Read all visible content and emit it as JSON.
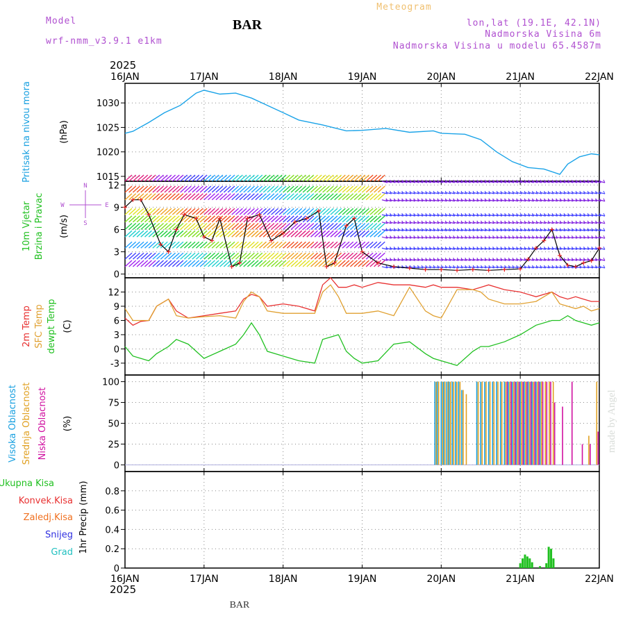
{
  "header": {
    "model_label": "Model",
    "model_name": "wrf-nmm_v3.9.1  e1km",
    "title": "BAR",
    "meteogram_label": "Meteogram",
    "location": "lon,lat (19.1E, 42.1N)",
    "elevation": "Nadmorska Visina 6m",
    "model_elevation": "Nadmorska Visina u modelu 65.4587m",
    "year_top": "2025",
    "year_bottom": "2025",
    "footer_title": "BAR",
    "credit": "made by Angel"
  },
  "colors": {
    "pressure": "#1aa3e8",
    "wind_speed": "#000000",
    "wind_marker": "#e82020",
    "temp_2m": "#e83030",
    "temp_sfc": "#e0a030",
    "dewpoint": "#20c020",
    "cloud_high": "#18a0e0",
    "cloud_mid": "#e0a020",
    "cloud_low": "#d010a0",
    "precip_total": "#20c020"
  },
  "wind_legend": {
    "north": "N",
    "west": "W",
    "east": "E",
    "south": "S"
  },
  "chart_data": [
    {
      "type": "line",
      "name": "pressure",
      "ylabel_left": "Pritisak na nivou mora",
      "unit": "(hPa)",
      "ylim": [
        1014,
        1034
      ],
      "yticks": [
        1015,
        1020,
        1025,
        1030
      ],
      "x": [
        0,
        0.1,
        0.3,
        0.5,
        0.7,
        0.9,
        1.0,
        1.2,
        1.4,
        1.6,
        1.8,
        2.0,
        2.2,
        2.5,
        2.8,
        3.0,
        3.3,
        3.6,
        3.9,
        4.0,
        4.3,
        4.5,
        4.7,
        4.9,
        5.1,
        5.3,
        5.5,
        5.6,
        5.75,
        5.9,
        6.0
      ],
      "values": [
        1023.8,
        1024.2,
        1026.0,
        1028.0,
        1029.5,
        1032.0,
        1032.6,
        1031.8,
        1032.0,
        1031.0,
        1029.5,
        1028.0,
        1026.5,
        1025.5,
        1024.3,
        1024.4,
        1024.8,
        1024.0,
        1024.3,
        1023.8,
        1023.6,
        1022.5,
        1020.0,
        1018.0,
        1016.8,
        1016.5,
        1015.4,
        1017.5,
        1019.0,
        1019.6,
        1019.4
      ]
    },
    {
      "type": "line",
      "name": "wind",
      "ylabel_left": "10m Vjetar",
      "ylabel_left2": "Brzina i Pravac",
      "unit": "(m/s)",
      "ylim": [
        -0.5,
        12.5
      ],
      "yticks": [
        0,
        3,
        6,
        9,
        12
      ],
      "barb_levels": [
        1,
        2,
        3.5,
        5,
        6,
        7,
        8,
        10,
        11,
        12.5
      ],
      "x": [
        0,
        0.1,
        0.2,
        0.3,
        0.45,
        0.55,
        0.65,
        0.75,
        0.9,
        1.0,
        1.1,
        1.2,
        1.35,
        1.45,
        1.55,
        1.7,
        1.85,
        2.0,
        2.15,
        2.3,
        2.45,
        2.55,
        2.65,
        2.8,
        2.9,
        3.0,
        3.2,
        3.4,
        3.6,
        3.8,
        4.0,
        4.2,
        4.4,
        4.6,
        4.8,
        5.0,
        5.1,
        5.2,
        5.3,
        5.4,
        5.5,
        5.6,
        5.7,
        5.8,
        5.9,
        6.0
      ],
      "values": [
        9.0,
        10.0,
        10.0,
        8.0,
        4.0,
        3.0,
        6.0,
        8.0,
        7.5,
        5.0,
        4.5,
        7.5,
        1.0,
        1.5,
        7.5,
        8.0,
        4.5,
        5.5,
        7.0,
        7.5,
        8.5,
        1.0,
        1.5,
        6.5,
        7.5,
        3.0,
        1.5,
        1.0,
        0.8,
        0.6,
        0.6,
        0.5,
        0.6,
        0.5,
        0.6,
        0.7,
        2.0,
        3.5,
        4.5,
        6.0,
        2.5,
        1.2,
        1.0,
        1.5,
        1.8,
        3.5
      ]
    },
    {
      "type": "line",
      "name": "temperature",
      "ylabel_left": "2m Temp",
      "ylabel_left2": "SFC Temp",
      "ylabel_left3": "dewpt Temp",
      "unit": "(C)",
      "ylim": [
        -5.5,
        15
      ],
      "yticks": [
        -3,
        0,
        3,
        6,
        9,
        12
      ],
      "x": [
        0,
        0.1,
        0.2,
        0.3,
        0.4,
        0.55,
        0.65,
        0.8,
        1.0,
        1.2,
        1.4,
        1.5,
        1.6,
        1.7,
        1.8,
        2.0,
        2.2,
        2.4,
        2.5,
        2.6,
        2.7,
        2.8,
        2.9,
        3.0,
        3.2,
        3.4,
        3.6,
        3.8,
        3.9,
        4.0,
        4.2,
        4.4,
        4.5,
        4.6,
        4.8,
        5.0,
        5.2,
        5.4,
        5.5,
        5.6,
        5.7,
        5.8,
        5.9,
        6.0
      ],
      "series": [
        {
          "name": "2m Temp",
          "values": [
            6.5,
            5.0,
            5.8,
            6.0,
            9.0,
            10.5,
            8.0,
            6.5,
            7.0,
            7.5,
            8.0,
            10.5,
            11.5,
            11.0,
            9.0,
            9.5,
            9.0,
            8.0,
            13.5,
            15.0,
            13.0,
            13.0,
            13.5,
            13.0,
            14.0,
            13.5,
            13.5,
            13.0,
            13.5,
            13.0,
            13.0,
            12.5,
            13.0,
            13.5,
            12.5,
            12.0,
            11.0,
            12.0,
            11.0,
            10.5,
            11.0,
            10.5,
            10.0,
            10.0
          ]
        },
        {
          "name": "SFC Temp",
          "values": [
            8.5,
            6.0,
            6.0,
            6.0,
            9.0,
            10.5,
            7.0,
            6.5,
            6.8,
            7.0,
            6.5,
            10.0,
            12.0,
            11.0,
            8.0,
            7.5,
            7.5,
            7.5,
            12.0,
            13.5,
            11.0,
            7.5,
            7.5,
            7.5,
            8.0,
            7.0,
            13.0,
            8.0,
            7.0,
            6.5,
            12.5,
            12.5,
            12.0,
            10.5,
            9.5,
            9.5,
            10.0,
            12.0,
            9.5,
            9.0,
            8.5,
            9.0,
            8.0,
            8.5
          ]
        },
        {
          "name": "dewpt Temp",
          "values": [
            0.5,
            -1.5,
            -2.0,
            -2.5,
            -1.0,
            0.5,
            2.0,
            1.0,
            -2.0,
            -0.5,
            1.0,
            3.0,
            5.5,
            3.0,
            -0.5,
            -1.5,
            -2.5,
            -3.0,
            2.0,
            2.5,
            3.0,
            -0.5,
            -2.0,
            -3.0,
            -2.5,
            1.0,
            1.5,
            -1.0,
            -2.0,
            -2.5,
            -3.5,
            -0.5,
            0.5,
            0.5,
            1.5,
            3.0,
            5.0,
            6.0,
            6.0,
            7.0,
            6.0,
            5.5,
            5.0,
            5.5
          ]
        }
      ]
    },
    {
      "type": "bar",
      "name": "cloud_cover",
      "ylabel_left": "Visoka Oblacnost",
      "ylabel_left2": "Srednja Oblacnost",
      "ylabel_left3": "Niska Oblacnost",
      "unit": "(%)",
      "ylim": [
        -8,
        108
      ],
      "yticks": [
        0,
        25,
        50,
        75,
        100
      ],
      "x": [
        3.92,
        3.95,
        4.0,
        4.03,
        4.07,
        4.1,
        4.14,
        4.18,
        4.22,
        4.26,
        4.3,
        4.45,
        4.5,
        4.55,
        4.6,
        4.65,
        4.7,
        4.75,
        4.8,
        4.85,
        4.9,
        4.95,
        5.0,
        5.05,
        5.1,
        5.15,
        5.2,
        5.25,
        5.3,
        5.35,
        5.4,
        5.5,
        5.62,
        5.75,
        5.85,
        5.95
      ],
      "series": [
        {
          "name": "Visoka Oblacnost",
          "values": [
            100,
            100,
            100,
            100,
            100,
            100,
            100,
            100,
            100,
            90,
            0,
            100,
            100,
            100,
            100,
            100,
            100,
            100,
            100,
            100,
            100,
            100,
            100,
            100,
            100,
            100,
            100,
            100,
            0,
            0,
            0,
            0,
            0,
            0,
            0,
            0
          ]
        },
        {
          "name": "Srednja Oblacnost",
          "values": [
            100,
            100,
            100,
            100,
            100,
            100,
            100,
            100,
            100,
            90,
            85,
            100,
            100,
            100,
            100,
            100,
            100,
            100,
            100,
            100,
            100,
            100,
            100,
            100,
            100,
            100,
            100,
            100,
            100,
            100,
            100,
            0,
            0,
            0,
            35,
            100
          ]
        },
        {
          "name": "Niska Oblacnost",
          "values": [
            0,
            0,
            0,
            0,
            0,
            0,
            0,
            0,
            0,
            0,
            0,
            0,
            0,
            0,
            0,
            0,
            0,
            0,
            100,
            100,
            100,
            100,
            100,
            100,
            100,
            100,
            100,
            100,
            100,
            100,
            75,
            70,
            100,
            25,
            25,
            40
          ]
        }
      ]
    },
    {
      "type": "bar",
      "name": "precipitation",
      "ylabel_left": "Ukupna Kisa",
      "ylabel_left2": "Konvek.Kisa",
      "ylabel_left3": "Zaledj.Kisa",
      "ylabel_left4": "Snijeg",
      "ylabel_left5": "Grad",
      "unit": "1hr Precip (mm)",
      "ylim": [
        0,
        1.0
      ],
      "yticks": [
        0,
        0.2,
        0.4,
        0.6,
        0.8
      ],
      "x": [
        5.0,
        5.03,
        5.06,
        5.09,
        5.12,
        5.15,
        5.25,
        5.33,
        5.36,
        5.39,
        5.42
      ],
      "series": [
        {
          "name": "Ukupna Kisa",
          "values": [
            0.05,
            0.1,
            0.14,
            0.12,
            0.1,
            0.06,
            0.02,
            0.05,
            0.22,
            0.2,
            0.1
          ]
        }
      ]
    }
  ],
  "x_axis": {
    "ticks": [
      "16JAN",
      "17JAN",
      "18JAN",
      "19JAN",
      "20JAN",
      "21JAN",
      "22JAN"
    ]
  }
}
